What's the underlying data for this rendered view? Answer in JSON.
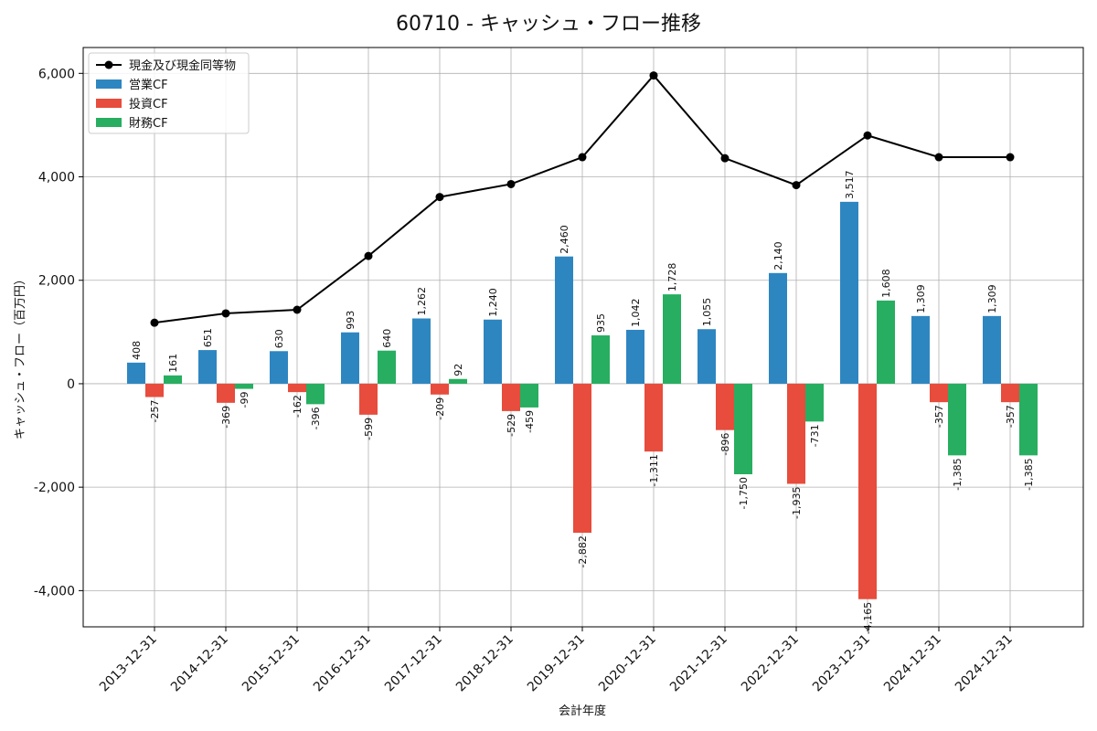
{
  "chart_data": {
    "type": "bar",
    "title": "60710 - キャッシュ・フロー推移",
    "xlabel": "会計年度",
    "ylabel": "キャッシュ・フロー（百万円）",
    "categories": [
      "2013-12-31",
      "2014-12-31",
      "2015-12-31",
      "2016-12-31",
      "2017-12-31",
      "2018-12-31",
      "2019-12-31",
      "2020-12-31",
      "2021-12-31",
      "2022-12-31",
      "2023-12-31",
      "2024-12-31",
      "2024-12-31"
    ],
    "ylim": [
      -4700,
      6500
    ],
    "yticks": [
      -4000,
      -2000,
      0,
      2000,
      4000,
      6000
    ],
    "ytick_labels": [
      "-4,000",
      "-2,000",
      "0",
      "2,000",
      "4,000",
      "6,000"
    ],
    "grid": true,
    "legend_position": "top-left",
    "series": [
      {
        "name": "営業CF",
        "kind": "bar",
        "color": "#2e86c1",
        "values": [
          408,
          651,
          630,
          993,
          1262,
          1240,
          2460,
          1042,
          1055,
          2140,
          3517,
          1309,
          1309
        ],
        "labels": [
          "408",
          "651",
          "630",
          "993",
          "1,262",
          "1,240",
          "2,460",
          "1,042",
          "1,055",
          "2,140",
          "3,517",
          "1,309",
          "1,309"
        ]
      },
      {
        "name": "投資CF",
        "kind": "bar",
        "color": "#e74c3c",
        "values": [
          -257,
          -369,
          -162,
          -599,
          -209,
          -529,
          -2882,
          -1311,
          -896,
          -1935,
          -4165,
          -357,
          -357
        ],
        "labels": [
          "-257",
          "-369",
          "-162",
          "-599",
          "-209",
          "-529",
          "-2,882",
          "-1,311",
          "-896",
          "-1,935",
          "-4,165",
          "-357",
          "-357"
        ]
      },
      {
        "name": "財務CF",
        "kind": "bar",
        "color": "#27ae60",
        "values": [
          161,
          -99,
          -396,
          640,
          92,
          -459,
          935,
          1728,
          -1750,
          -731,
          1608,
          -1385,
          -1385
        ],
        "labels": [
          "161",
          "-99",
          "-396",
          "640",
          "92",
          "-459",
          "935",
          "1,728",
          "-1,750",
          "-731",
          "1,608",
          "-1,385",
          "-1,385"
        ]
      },
      {
        "name": "現金及び現金同等物",
        "kind": "line",
        "color": "#000000",
        "values": [
          1180,
          1360,
          1430,
          2470,
          3610,
          3860,
          4380,
          5960,
          4360,
          3840,
          4800,
          4380,
          4380
        ]
      }
    ]
  }
}
